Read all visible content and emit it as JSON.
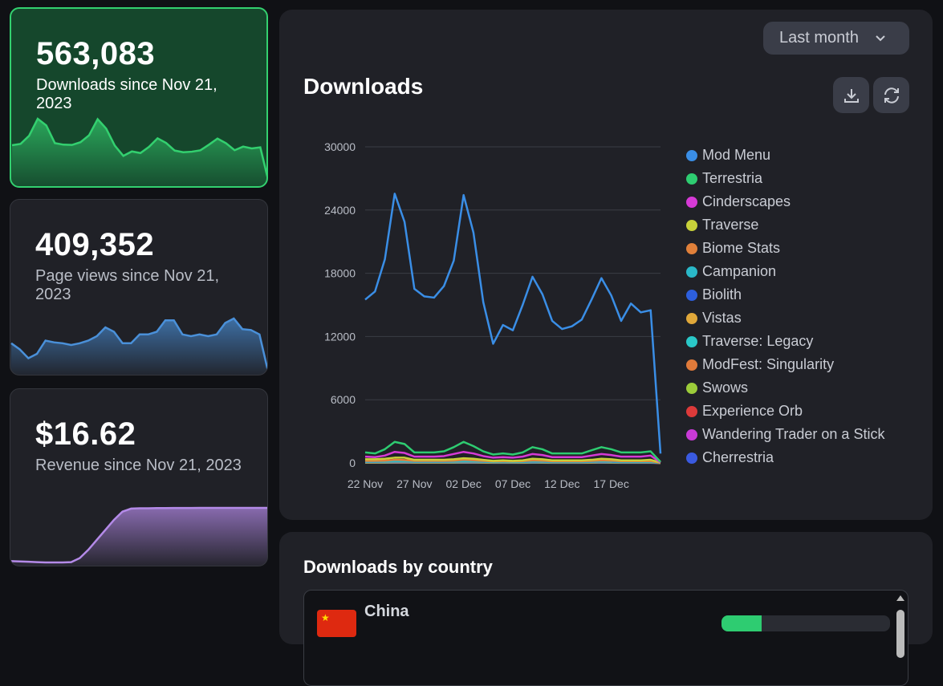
{
  "cards": [
    {
      "value": "563,083",
      "label": "Downloads since Nov 21, 2023",
      "color": "#33d06f",
      "active": true
    },
    {
      "value": "409,352",
      "label": "Page views since Nov 21, 2023",
      "color": "#4a90d9",
      "sparkline": [
        42,
        35,
        25,
        30,
        45,
        43,
        42,
        40,
        42,
        45,
        50,
        60,
        55,
        42,
        42,
        52,
        52,
        55,
        68,
        68,
        52,
        50,
        52,
        50,
        52,
        65,
        70,
        58,
        57,
        52,
        10
      ]
    },
    {
      "value": "$16.62",
      "label": "Revenue since Nov 21, 2023",
      "color": "#b48ae8",
      "sparkline": [
        0.6,
        0.5,
        0.4,
        0.3,
        0.2,
        0.2,
        0.2,
        0.3,
        1.5,
        4,
        7,
        10,
        13,
        15.5,
        16.4,
        16.5,
        16.5,
        16.55,
        16.55,
        16.6,
        16.6,
        16.6,
        16.62,
        16.62,
        16.62,
        16.62,
        16.62,
        16.62,
        16.62,
        16.62,
        16.62
      ]
    }
  ],
  "downloads_panel": {
    "range_select": "Last month",
    "title": "Downloads",
    "download_button": "download-icon",
    "refresh_button": "refresh-icon"
  },
  "chart_data": {
    "type": "line",
    "title": "Downloads",
    "x": [
      "22 Nov",
      "23 Nov",
      "24 Nov",
      "25 Nov",
      "26 Nov",
      "27 Nov",
      "28 Nov",
      "29 Nov",
      "30 Nov",
      "01 Dec",
      "02 Dec",
      "03 Dec",
      "04 Dec",
      "05 Dec",
      "06 Dec",
      "07 Dec",
      "08 Dec",
      "09 Dec",
      "10 Dec",
      "11 Dec",
      "12 Dec",
      "13 Dec",
      "14 Dec",
      "15 Dec",
      "16 Dec",
      "17 Dec",
      "18 Dec",
      "19 Dec",
      "20 Dec",
      "21 Dec",
      "22 Dec"
    ],
    "x_tick_labels": [
      "22 Nov",
      "27 Nov",
      "02 Dec",
      "07 Dec",
      "12 Dec",
      "17 Dec"
    ],
    "y_ticks": [
      0,
      6000,
      12000,
      18000,
      24000,
      30000
    ],
    "ylim": [
      0,
      30000
    ],
    "grid": true,
    "legend_position": "right",
    "series": [
      {
        "name": "Mod Menu",
        "color": "#3a8ee6",
        "values": [
          15500,
          16270,
          19320,
          25550,
          22880,
          16520,
          15810,
          15690,
          16780,
          19200,
          25420,
          21860,
          15250,
          11310,
          13090,
          12590,
          15000,
          17670,
          16020,
          13480,
          12710,
          12970,
          13600,
          15510,
          17540,
          15890,
          13480,
          15130,
          14290,
          14490,
          890
        ]
      },
      {
        "name": "Terrestria",
        "color": "#2ecc71",
        "values": [
          1000,
          900,
          1300,
          2000,
          1800,
          1000,
          1000,
          1000,
          1100,
          1500,
          2000,
          1600,
          1100,
          800,
          900,
          800,
          1000,
          1500,
          1300,
          900,
          900,
          900,
          900,
          1200,
          1500,
          1300,
          1000,
          1000,
          1000,
          1100,
          100
        ]
      },
      {
        "name": "Cinderscapes",
        "color": "#d63ad6",
        "values": [
          600,
          550,
          700,
          1050,
          950,
          600,
          600,
          600,
          650,
          850,
          1050,
          900,
          650,
          500,
          550,
          500,
          600,
          850,
          750,
          550,
          550,
          550,
          550,
          700,
          850,
          750,
          600,
          600,
          600,
          700,
          50
        ]
      },
      {
        "name": "Traverse",
        "color": "#c8d13a",
        "values": [
          350,
          350,
          400,
          500,
          500,
          300,
          300,
          300,
          300,
          350,
          450,
          400,
          300,
          200,
          250,
          200,
          250,
          400,
          350,
          250,
          250,
          250,
          250,
          300,
          400,
          350,
          250,
          250,
          250,
          300,
          30
        ]
      },
      {
        "name": "Biome Stats",
        "color": "#e0803a",
        "values": [
          200,
          200,
          220,
          300,
          280,
          200,
          200,
          200,
          200,
          220,
          300,
          260,
          200,
          150,
          160,
          150,
          170,
          250,
          220,
          160,
          160,
          160,
          160,
          200,
          250,
          220,
          170,
          170,
          170,
          180,
          20
        ]
      },
      {
        "name": "Campanion",
        "color": "#2ab8c8",
        "values": [
          120,
          120,
          130,
          180,
          170,
          120,
          120,
          120,
          120,
          130,
          180,
          160,
          120,
          90,
          100,
          90,
          100,
          150,
          130,
          100,
          100,
          100,
          100,
          120,
          150,
          130,
          100,
          100,
          100,
          110,
          10
        ]
      },
      {
        "name": "Biolith",
        "color": "#2d5fdd",
        "values": [
          100,
          100,
          110,
          150,
          140,
          100,
          100,
          100,
          100,
          110,
          150,
          130,
          100,
          80,
          80,
          80,
          90,
          120,
          110,
          80,
          80,
          80,
          80,
          100,
          120,
          110,
          80,
          80,
          80,
          90,
          10
        ]
      },
      {
        "name": "Vistas",
        "color": "#e0a83a",
        "values": [
          80,
          80,
          90,
          120,
          110,
          80,
          80,
          80,
          80,
          90,
          120,
          100,
          80,
          60,
          70,
          60,
          70,
          100,
          90,
          70,
          70,
          70,
          70,
          80,
          100,
          90,
          70,
          70,
          70,
          70,
          5
        ]
      },
      {
        "name": "Traverse: Legacy",
        "color": "#2ac8c8",
        "values": [
          60,
          60,
          60,
          80,
          80,
          60,
          60,
          60,
          60,
          60,
          80,
          70,
          60,
          50,
          50,
          50,
          50,
          70,
          60,
          50,
          50,
          50,
          50,
          60,
          70,
          60,
          50,
          50,
          50,
          50,
          5
        ]
      },
      {
        "name": "ModFest: Singularity",
        "color": "#e07a3a",
        "values": [
          50,
          50,
          50,
          70,
          60,
          50,
          50,
          50,
          50,
          50,
          70,
          60,
          50,
          40,
          40,
          40,
          40,
          60,
          50,
          40,
          40,
          40,
          40,
          50,
          60,
          50,
          40,
          40,
          40,
          40,
          5
        ]
      },
      {
        "name": "Swows",
        "color": "#9ccc3a",
        "values": [
          40,
          40,
          40,
          50,
          50,
          40,
          40,
          40,
          40,
          40,
          50,
          45,
          40,
          30,
          30,
          30,
          30,
          45,
          40,
          30,
          30,
          30,
          30,
          40,
          45,
          40,
          30,
          30,
          30,
          30,
          3
        ]
      },
      {
        "name": "Experience Orb",
        "color": "#dd3a3a",
        "values": [
          30,
          30,
          30,
          40,
          40,
          30,
          30,
          30,
          30,
          30,
          40,
          35,
          30,
          25,
          25,
          25,
          25,
          35,
          30,
          25,
          25,
          25,
          25,
          30,
          35,
          30,
          25,
          25,
          25,
          25,
          2
        ]
      },
      {
        "name": "Wandering Trader on a Stick",
        "color": "#c83ad6",
        "values": [
          20,
          20,
          20,
          30,
          30,
          20,
          20,
          20,
          20,
          20,
          30,
          25,
          20,
          15,
          15,
          15,
          15,
          25,
          20,
          15,
          15,
          15,
          15,
          20,
          25,
          20,
          15,
          15,
          15,
          15,
          1
        ]
      },
      {
        "name": "Cherrestria",
        "color": "#3a5ae0",
        "values": [
          15,
          15,
          15,
          20,
          20,
          15,
          15,
          15,
          15,
          15,
          20,
          18,
          15,
          10,
          10,
          10,
          10,
          18,
          15,
          10,
          10,
          10,
          10,
          15,
          18,
          15,
          10,
          10,
          10,
          10,
          1
        ]
      }
    ]
  },
  "country_panel": {
    "title": "Downloads by country",
    "rows": [
      {
        "country": "China",
        "share": 0.24,
        "bar_color": "#2ecc71"
      }
    ]
  }
}
